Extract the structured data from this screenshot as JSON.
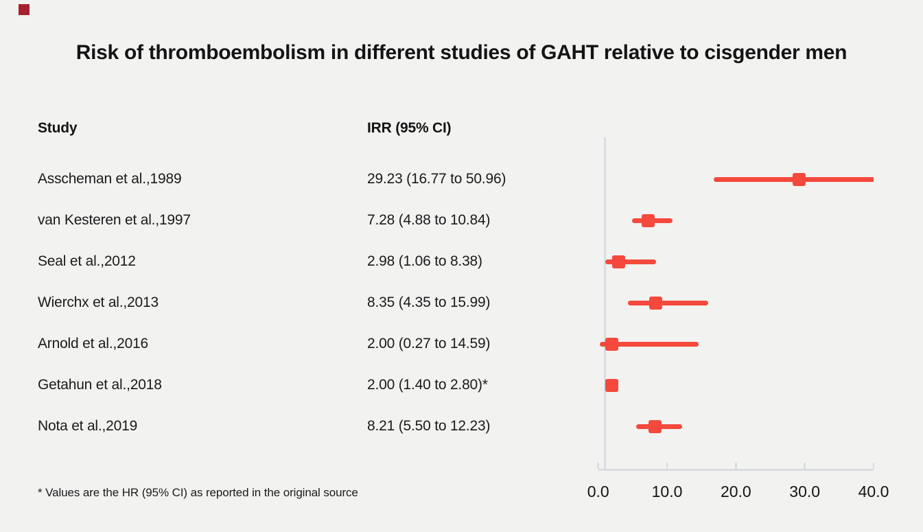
{
  "page": {
    "title": "Risk of thromboembolism in different studies of GAHT relative to cisgender men",
    "footnote": "* Values are the HR (95% CI) as reported in the original source",
    "background_color": "#f2f2f1",
    "brand_square_color": "#A5212E",
    "text_color": "#141414"
  },
  "table": {
    "study_header": "Study",
    "irr_header": "IRR (95% CI)"
  },
  "chart_data": {
    "type": "forest",
    "title": "Risk of thromboembolism in different studies of GAHT relative to cisgender men",
    "xlabel": "",
    "ylabel": "",
    "xlim": [
      0,
      40
    ],
    "x_ticks": [
      0,
      10,
      20,
      30,
      40
    ],
    "x_tick_labels": [
      "0.0",
      "10.0",
      "20.0",
      "30.0",
      "40.0"
    ],
    "reference_line_x": 1.0,
    "grid": false,
    "legend": "none",
    "marker_color": "#F4493C",
    "axis_color": "#D9DDE2",
    "studies": [
      {
        "label": "Asscheman et al.,1989",
        "irr_label": "29.23 (16.77 to 50.96)",
        "irr": 29.23,
        "ci_low": 16.77,
        "ci_high": 50.96
      },
      {
        "label": "van Kesteren et al.,1997",
        "irr_label": "7.28 (4.88 to 10.84)",
        "irr": 7.28,
        "ci_low": 4.88,
        "ci_high": 10.84
      },
      {
        "label": "Seal et al.,2012",
        "irr_label": "2.98 (1.06 to 8.38)",
        "irr": 2.98,
        "ci_low": 1.06,
        "ci_high": 8.38
      },
      {
        "label": "Wierchx et al.,2013",
        "irr_label": "8.35 (4.35 to 15.99)",
        "irr": 8.35,
        "ci_low": 4.35,
        "ci_high": 15.99
      },
      {
        "label": "Arnold et al.,2016",
        "irr_label": "2.00 (0.27 to 14.59)",
        "irr": 2.0,
        "ci_low": 0.27,
        "ci_high": 14.59
      },
      {
        "label": "Getahun et al.,2018",
        "irr_label": "2.00 (1.40 to 2.80)*",
        "irr": 2.0,
        "ci_low": 1.4,
        "ci_high": 2.8
      },
      {
        "label": "Nota et al.,2019",
        "irr_label": "8.21 (5.50 to 12.23)",
        "irr": 8.21,
        "ci_low": 5.5,
        "ci_high": 12.23
      }
    ]
  }
}
